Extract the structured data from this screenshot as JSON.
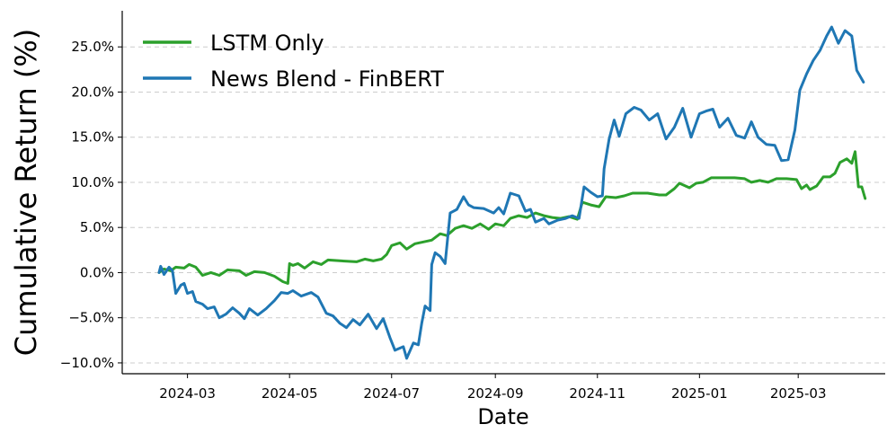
{
  "chart_data": {
    "type": "line",
    "title": "",
    "xlabel": "Date",
    "ylabel": "Cumulative Return (%)",
    "x_range": [
      "2024-01-22",
      "2025-04-22"
    ],
    "ylim": [
      -11.2,
      29.0
    ],
    "grid": "horizontal dashed",
    "legend_position": "top-left",
    "x_ticks": [
      "2024-03",
      "2024-05",
      "2024-07",
      "2024-09",
      "2024-11",
      "2025-01",
      "2025-03"
    ],
    "y_ticks": [
      {
        "value": -10,
        "label": "−10.0%"
      },
      {
        "value": -5,
        "label": "−5.0%"
      },
      {
        "value": 0,
        "label": "0.0%"
      },
      {
        "value": 5,
        "label": "5.0%"
      },
      {
        "value": 10,
        "label": "10.0%"
      },
      {
        "value": 15,
        "label": "15.0%"
      },
      {
        "value": 20,
        "label": "20.0%"
      },
      {
        "value": 25,
        "label": "25.0%"
      }
    ],
    "series": [
      {
        "name": "LSTM Only",
        "color": "#2ca02c",
        "points": [
          [
            "2024-02-13",
            0.0
          ],
          [
            "2024-02-16",
            0.4
          ],
          [
            "2024-02-20",
            0.2
          ],
          [
            "2024-02-23",
            0.6
          ],
          [
            "2024-02-28",
            0.5
          ],
          [
            "2024-03-02",
            0.9
          ],
          [
            "2024-03-06",
            0.6
          ],
          [
            "2024-03-10",
            -0.3
          ],
          [
            "2024-03-15",
            0.0
          ],
          [
            "2024-03-20",
            -0.3
          ],
          [
            "2024-03-25",
            0.3
          ],
          [
            "2024-04-01",
            0.2
          ],
          [
            "2024-04-05",
            -0.3
          ],
          [
            "2024-04-10",
            0.1
          ],
          [
            "2024-04-16",
            0.0
          ],
          [
            "2024-04-22",
            -0.4
          ],
          [
            "2024-04-27",
            -1.0
          ],
          [
            "2024-04-30",
            -1.2
          ],
          [
            "2024-05-01",
            1.0
          ],
          [
            "2024-05-03",
            0.8
          ],
          [
            "2024-05-06",
            1.0
          ],
          [
            "2024-05-10",
            0.5
          ],
          [
            "2024-05-15",
            1.2
          ],
          [
            "2024-05-20",
            0.9
          ],
          [
            "2024-05-24",
            1.4
          ],
          [
            "2024-06-01",
            1.3
          ],
          [
            "2024-06-10",
            1.2
          ],
          [
            "2024-06-15",
            1.5
          ],
          [
            "2024-06-20",
            1.3
          ],
          [
            "2024-06-25",
            1.5
          ],
          [
            "2024-06-28",
            2.0
          ],
          [
            "2024-07-01",
            3.0
          ],
          [
            "2024-07-06",
            3.3
          ],
          [
            "2024-07-10",
            2.6
          ],
          [
            "2024-07-15",
            3.2
          ],
          [
            "2024-07-20",
            3.4
          ],
          [
            "2024-07-25",
            3.6
          ],
          [
            "2024-07-30",
            4.3
          ],
          [
            "2024-08-03",
            4.1
          ],
          [
            "2024-08-08",
            4.9
          ],
          [
            "2024-08-13",
            5.2
          ],
          [
            "2024-08-18",
            4.9
          ],
          [
            "2024-08-23",
            5.4
          ],
          [
            "2024-08-28",
            4.8
          ],
          [
            "2024-09-01",
            5.4
          ],
          [
            "2024-09-06",
            5.2
          ],
          [
            "2024-09-10",
            6.0
          ],
          [
            "2024-09-15",
            6.3
          ],
          [
            "2024-09-20",
            6.1
          ],
          [
            "2024-09-25",
            6.6
          ],
          [
            "2024-09-30",
            6.3
          ],
          [
            "2024-10-05",
            6.1
          ],
          [
            "2024-10-10",
            6.0
          ],
          [
            "2024-10-15",
            6.2
          ],
          [
            "2024-10-20",
            5.9
          ],
          [
            "2024-10-23",
            7.8
          ],
          [
            "2024-10-28",
            7.5
          ],
          [
            "2024-11-02",
            7.3
          ],
          [
            "2024-11-06",
            8.4
          ],
          [
            "2024-11-12",
            8.3
          ],
          [
            "2024-11-17",
            8.5
          ],
          [
            "2024-11-22",
            8.8
          ],
          [
            "2024-12-01",
            8.8
          ],
          [
            "2024-12-08",
            8.6
          ],
          [
            "2024-12-12",
            8.6
          ],
          [
            "2024-12-17",
            9.3
          ],
          [
            "2024-12-20",
            9.9
          ],
          [
            "2024-12-26",
            9.4
          ],
          [
            "2024-12-30",
            9.9
          ],
          [
            "2025-01-03",
            10.0
          ],
          [
            "2025-01-08",
            10.5
          ],
          [
            "2025-01-15",
            10.5
          ],
          [
            "2025-01-22",
            10.5
          ],
          [
            "2025-01-28",
            10.4
          ],
          [
            "2025-02-01",
            10.0
          ],
          [
            "2025-02-06",
            10.2
          ],
          [
            "2025-02-11",
            10.0
          ],
          [
            "2025-02-16",
            10.4
          ],
          [
            "2025-02-22",
            10.4
          ],
          [
            "2025-02-28",
            10.3
          ],
          [
            "2025-03-03",
            9.3
          ],
          [
            "2025-03-06",
            9.7
          ],
          [
            "2025-03-08",
            9.2
          ],
          [
            "2025-03-12",
            9.6
          ],
          [
            "2025-03-16",
            10.6
          ],
          [
            "2025-03-20",
            10.6
          ],
          [
            "2025-03-23",
            11.0
          ],
          [
            "2025-03-26",
            12.2
          ],
          [
            "2025-03-30",
            12.6
          ],
          [
            "2025-04-02",
            12.1
          ],
          [
            "2025-04-04",
            13.4
          ],
          [
            "2025-04-06",
            9.5
          ],
          [
            "2025-04-08",
            9.5
          ],
          [
            "2025-04-10",
            8.2
          ]
        ]
      },
      {
        "name": "News Blend - FinBERT",
        "color": "#1f77b4",
        "points": [
          [
            "2024-02-13",
            0.0
          ],
          [
            "2024-02-14",
            0.7
          ],
          [
            "2024-02-16",
            -0.2
          ],
          [
            "2024-02-19",
            0.6
          ],
          [
            "2024-02-21",
            0.2
          ],
          [
            "2024-02-23",
            -2.3
          ],
          [
            "2024-02-26",
            -1.4
          ],
          [
            "2024-02-28",
            -1.2
          ],
          [
            "2024-03-01",
            -2.3
          ],
          [
            "2024-03-04",
            -2.1
          ],
          [
            "2024-03-06",
            -3.2
          ],
          [
            "2024-03-10",
            -3.5
          ],
          [
            "2024-03-13",
            -4.0
          ],
          [
            "2024-03-17",
            -3.8
          ],
          [
            "2024-03-20",
            -5.0
          ],
          [
            "2024-03-24",
            -4.6
          ],
          [
            "2024-03-28",
            -3.9
          ],
          [
            "2024-04-01",
            -4.5
          ],
          [
            "2024-04-04",
            -5.1
          ],
          [
            "2024-04-07",
            -4.0
          ],
          [
            "2024-04-12",
            -4.7
          ],
          [
            "2024-04-17",
            -4.0
          ],
          [
            "2024-04-22",
            -3.1
          ],
          [
            "2024-04-26",
            -2.2
          ],
          [
            "2024-04-30",
            -2.3
          ],
          [
            "2024-05-03",
            -2.0
          ],
          [
            "2024-05-08",
            -2.6
          ],
          [
            "2024-05-14",
            -2.2
          ],
          [
            "2024-05-18",
            -2.7
          ],
          [
            "2024-05-23",
            -4.5
          ],
          [
            "2024-05-27",
            -4.8
          ],
          [
            "2024-05-31",
            -5.6
          ],
          [
            "2024-06-04",
            -6.1
          ],
          [
            "2024-06-08",
            -5.2
          ],
          [
            "2024-06-12",
            -5.8
          ],
          [
            "2024-06-17",
            -4.6
          ],
          [
            "2024-06-22",
            -6.2
          ],
          [
            "2024-06-26",
            -5.1
          ],
          [
            "2024-06-30",
            -7.2
          ],
          [
            "2024-07-03",
            -8.6
          ],
          [
            "2024-07-08",
            -8.2
          ],
          [
            "2024-07-10",
            -9.5
          ],
          [
            "2024-07-14",
            -7.8
          ],
          [
            "2024-07-17",
            -8.0
          ],
          [
            "2024-07-19",
            -5.6
          ],
          [
            "2024-07-21",
            -3.7
          ],
          [
            "2024-07-24",
            -4.2
          ],
          [
            "2024-07-25",
            0.9
          ],
          [
            "2024-07-27",
            2.2
          ],
          [
            "2024-07-30",
            1.8
          ],
          [
            "2024-08-02",
            1.0
          ],
          [
            "2024-08-05",
            6.6
          ],
          [
            "2024-08-09",
            7.0
          ],
          [
            "2024-08-13",
            8.4
          ],
          [
            "2024-08-16",
            7.5
          ],
          [
            "2024-08-19",
            7.2
          ],
          [
            "2024-08-25",
            7.1
          ],
          [
            "2024-08-31",
            6.6
          ],
          [
            "2024-09-03",
            7.2
          ],
          [
            "2024-09-06",
            6.5
          ],
          [
            "2024-09-10",
            8.8
          ],
          [
            "2024-09-15",
            8.5
          ],
          [
            "2024-09-19",
            6.8
          ],
          [
            "2024-09-22",
            7.0
          ],
          [
            "2024-09-25",
            5.6
          ],
          [
            "2024-09-30",
            6.0
          ],
          [
            "2024-10-03",
            5.4
          ],
          [
            "2024-10-08",
            5.8
          ],
          [
            "2024-10-13",
            6.0
          ],
          [
            "2024-10-17",
            6.3
          ],
          [
            "2024-10-21",
            6.0
          ],
          [
            "2024-10-24",
            9.5
          ],
          [
            "2024-10-28",
            8.9
          ],
          [
            "2024-11-01",
            8.4
          ],
          [
            "2024-11-04",
            8.5
          ],
          [
            "2024-11-05",
            11.5
          ],
          [
            "2024-11-08",
            14.8
          ],
          [
            "2024-11-11",
            16.9
          ],
          [
            "2024-11-14",
            15.1
          ],
          [
            "2024-11-18",
            17.6
          ],
          [
            "2024-11-23",
            18.3
          ],
          [
            "2024-11-27",
            18.0
          ],
          [
            "2024-12-02",
            16.9
          ],
          [
            "2024-12-07",
            17.6
          ],
          [
            "2024-12-12",
            14.8
          ],
          [
            "2024-12-17",
            16.1
          ],
          [
            "2024-12-22",
            18.2
          ],
          [
            "2024-12-27",
            15.0
          ],
          [
            "2025-01-01",
            17.6
          ],
          [
            "2025-01-05",
            17.9
          ],
          [
            "2025-01-09",
            18.1
          ],
          [
            "2025-01-13",
            16.1
          ],
          [
            "2025-01-18",
            17.1
          ],
          [
            "2025-01-23",
            15.2
          ],
          [
            "2025-01-28",
            14.9
          ],
          [
            "2025-02-01",
            16.7
          ],
          [
            "2025-02-05",
            15.0
          ],
          [
            "2025-02-10",
            14.2
          ],
          [
            "2025-02-15",
            14.1
          ],
          [
            "2025-02-19",
            12.4
          ],
          [
            "2025-02-23",
            12.5
          ],
          [
            "2025-02-27",
            15.8
          ],
          [
            "2025-03-02",
            20.2
          ],
          [
            "2025-03-06",
            22.0
          ],
          [
            "2025-03-10",
            23.5
          ],
          [
            "2025-03-14",
            24.6
          ],
          [
            "2025-03-18",
            26.2
          ],
          [
            "2025-03-21",
            27.2
          ],
          [
            "2025-03-25",
            25.4
          ],
          [
            "2025-03-29",
            26.8
          ],
          [
            "2025-04-02",
            26.2
          ],
          [
            "2025-04-05",
            22.4
          ],
          [
            "2025-04-09",
            21.1
          ]
        ]
      }
    ]
  }
}
